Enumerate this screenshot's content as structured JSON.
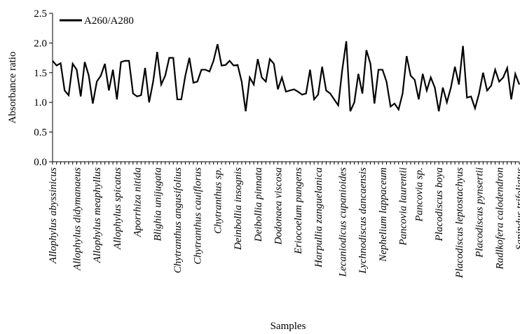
{
  "chart_data": {
    "type": "line",
    "xlabel": "Samples",
    "ylabel": "Absorbance ratio",
    "categories": [
      "Allophylus abyssinicus",
      null,
      null,
      null,
      null,
      null,
      "Allophylus didymanaeus",
      null,
      null,
      null,
      null,
      "Allophylus meaphyllus",
      null,
      null,
      null,
      null,
      "Allophylus spicatus",
      null,
      null,
      null,
      null,
      "Aporrhiza nitida",
      null,
      null,
      null,
      null,
      "Blighia unijugata",
      null,
      null,
      null,
      null,
      "Chytranthus angusifolius",
      null,
      null,
      null,
      null,
      "Chytranthus cauiflorus",
      null,
      null,
      null,
      null,
      "Chytranthus sp.",
      null,
      null,
      null,
      null,
      "Deinbollia insognis",
      null,
      null,
      null,
      null,
      "Deibollia pinnata",
      null,
      null,
      null,
      null,
      "Dodonaea viscosa",
      null,
      null,
      null,
      null,
      "Eriocoelum pungens",
      null,
      null,
      null,
      null,
      "Harpullia zanguelanica",
      null,
      null,
      null,
      null,
      null,
      "Lecaniodicus cupanioides",
      null,
      null,
      null,
      null,
      "Lychnodiscus dancaensis",
      null,
      null,
      null,
      null,
      "Nephelium lappaceum",
      null,
      null,
      null,
      null,
      "Pancovia laurentii",
      null,
      null,
      null,
      "Pancovia sp.",
      null,
      null,
      null,
      null,
      "Placodiscus boya",
      null,
      null,
      null,
      null,
      "Placodiscus leptostachyus",
      null,
      null,
      null,
      null,
      "Placodiscus pynsertii",
      null,
      null,
      null,
      null,
      "Radlkofera calodendron",
      null,
      null,
      null,
      null,
      "Sapindus trifoliatus"
    ],
    "series": [
      {
        "name": "A260/A280",
        "color": "#000000",
        "values": [
          1.7,
          1.62,
          1.66,
          1.2,
          1.12,
          1.65,
          1.55,
          1.1,
          1.68,
          1.45,
          0.98,
          1.35,
          1.45,
          1.65,
          1.2,
          1.55,
          1.05,
          1.68,
          1.7,
          1.7,
          1.15,
          1.1,
          1.12,
          1.58,
          1.0,
          1.35,
          1.85,
          1.3,
          1.45,
          1.75,
          1.75,
          1.05,
          1.05,
          1.45,
          1.75,
          1.33,
          1.35,
          1.55,
          1.55,
          1.52,
          1.7,
          1.98,
          1.62,
          1.63,
          1.7,
          1.62,
          1.63,
          1.35,
          0.85,
          1.42,
          1.3,
          1.73,
          1.42,
          1.35,
          1.73,
          1.65,
          1.22,
          1.42,
          1.18,
          1.2,
          1.22,
          1.18,
          1.13,
          1.15,
          1.55,
          1.05,
          1.13,
          1.6,
          1.2,
          1.15,
          1.05,
          0.95,
          1.55,
          2.03,
          0.85,
          1.0,
          1.48,
          1.15,
          1.88,
          1.65,
          0.98,
          1.55,
          1.55,
          1.35,
          0.93,
          0.98,
          0.88,
          1.15,
          1.78,
          1.45,
          1.38,
          1.05,
          1.48,
          1.2,
          1.42,
          1.25,
          0.85,
          1.25,
          1.0,
          1.25,
          1.6,
          1.3,
          1.95,
          1.08,
          1.1,
          0.9,
          1.15,
          1.5,
          1.2,
          1.28,
          1.55,
          1.35,
          1.42,
          1.58,
          1.05,
          1.48,
          1.3
        ]
      }
    ],
    "ylim": [
      0,
      2.5
    ],
    "yticks": [
      {
        "value": 0,
        "label": "0.0"
      },
      {
        "value": 0.5,
        "label": "0.5"
      },
      {
        "value": 1,
        "label": "1.0"
      },
      {
        "value": 1.5,
        "label": "1.5"
      },
      {
        "value": 2,
        "label": "2.0"
      },
      {
        "value": 2.5,
        "label": "2.5"
      }
    ],
    "legend": "upper left"
  }
}
